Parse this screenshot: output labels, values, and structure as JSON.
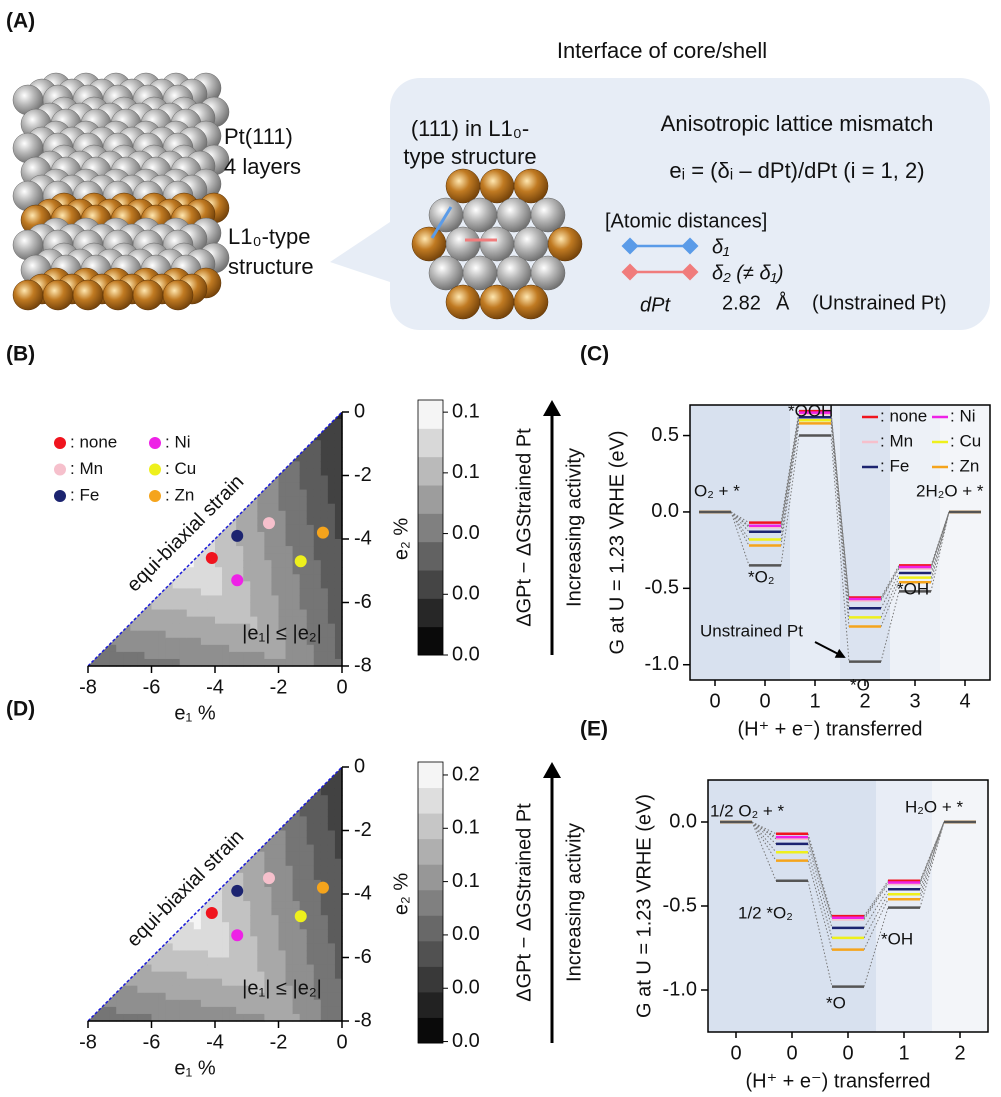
{
  "panel_a": {
    "label": "(A)",
    "title": "Interface of core/shell",
    "stack_labels": [
      "Pt(111)",
      "4 layers",
      "L1₀-type",
      "structure"
    ],
    "inset_title": [
      "(111) in L1₀-",
      "type structure"
    ],
    "mismatch_title": "Anisotropic lattice mismatch",
    "equation": "eᵢ = (δᵢ – dPt)/dPt (i = 1, 2)",
    "distances_title": "[Atomic distances]",
    "delta1": "δ₁",
    "delta2": "δ₂ (≠ δ₁)",
    "dpt_symbol": "dPt",
    "dpt_value": 2.82,
    "dpt_unit": "Å",
    "dpt_note": "(Unstrained Pt)"
  },
  "chart_data": [
    {
      "type": "scatter",
      "label": "(B)",
      "xlabel": "e₁ %",
      "ylabel": "e₂ %",
      "xlim": [
        -8,
        0
      ],
      "ylim": [
        -8,
        0
      ],
      "xticks": [
        -8,
        -6,
        -4,
        -2,
        0
      ],
      "yticks": [
        0,
        -2,
        -4,
        -6,
        -8
      ],
      "series": [
        {
          "name": ": none",
          "color": "#f0141e",
          "x": [
            -4.1
          ],
          "y": [
            -4.6
          ]
        },
        {
          "name": ": Mn",
          "color": "#f6c0cc",
          "x": [
            -2.3
          ],
          "y": [
            -3.5
          ]
        },
        {
          "name": ": Fe",
          "color": "#1c2470",
          "x": [
            -3.3
          ],
          "y": [
            -3.9
          ]
        },
        {
          "name": ": Ni",
          "color": "#ee22e6",
          "x": [
            -3.3
          ],
          "y": [
            -5.3
          ]
        },
        {
          "name": ": Cu",
          "color": "#eef01c",
          "x": [
            -1.3
          ],
          "y": [
            -4.7
          ]
        },
        {
          "name": ": Zn",
          "color": "#f5a41c",
          "x": [
            -0.6
          ],
          "y": [
            -3.8
          ]
        }
      ],
      "annotations": [
        "equi-biaxial strain",
        "|e₁| ≤ |e₂|"
      ],
      "colorbar": {
        "label": "ΔGPt − ΔGStrained Pt",
        "arrow_label": "Increasing activity",
        "lim": [
          0,
          0.084
        ],
        "ticks": [
          {
            "value": 0,
            "label": "0.0"
          },
          {
            "value": 0.02,
            "label": "0.0"
          },
          {
            "value": 0.04,
            "label": "0.0"
          },
          {
            "value": 0.06,
            "label": "0.1"
          },
          {
            "value": 0.08,
            "label": "0.1"
          }
        ]
      }
    },
    {
      "type": "energy",
      "label": "(C)",
      "xlabel": "(H⁺ + e⁻) transferred",
      "ylabel": "G at U = 1.23 VRHE (eV)",
      "categories": [
        "0",
        "0",
        "1",
        "2",
        "3",
        "4"
      ],
      "states": [
        "O₂ + *",
        "*O₂",
        "*OOH",
        "*O",
        "*OH",
        "2H₂O + *"
      ],
      "ylim": [
        -1.1,
        0.7
      ],
      "yticks": [
        {
          "value": -1,
          "label": "-1.0"
        },
        -0.5,
        {
          "value": 0,
          "label": "0.0"
        },
        0.5
      ],
      "legend": true,
      "series": [
        {
          "name": ": none",
          "color": "#f0141e",
          "values": [
            0,
            -0.07,
            0.66,
            -0.56,
            -0.35,
            0
          ]
        },
        {
          "name": ": Mn",
          "color": "#f6c0cc",
          "values": [
            0,
            -0.1,
            0.64,
            -0.58,
            -0.37,
            0
          ]
        },
        {
          "name": ": Fe",
          "color": "#1c2470",
          "values": [
            0,
            -0.13,
            0.62,
            -0.63,
            -0.4,
            0
          ]
        },
        {
          "name": ": Ni",
          "color": "#ee22e6",
          "values": [
            0,
            -0.09,
            0.65,
            -0.57,
            -0.36,
            0
          ]
        },
        {
          "name": ": Cu",
          "color": "#eef01c",
          "values": [
            0,
            -0.18,
            0.6,
            -0.69,
            -0.43,
            0
          ]
        },
        {
          "name": ": Zn",
          "color": "#f5a41c",
          "values": [
            0,
            -0.22,
            0.58,
            -0.75,
            -0.46,
            0
          ]
        }
      ],
      "reference": {
        "name": "Unstrained Pt",
        "color": "#555555",
        "values": [
          0,
          -0.35,
          0.5,
          -0.98,
          -0.52,
          0
        ]
      }
    },
    {
      "type": "scatter",
      "label": "(D)",
      "xlabel": "e₁ %",
      "ylabel": "e₂ %",
      "xlim": [
        -8,
        0
      ],
      "ylim": [
        -8,
        0
      ],
      "xticks": [
        -8,
        -6,
        -4,
        -2,
        0
      ],
      "yticks": [
        0,
        -2,
        -4,
        -6,
        -8
      ],
      "series": [
        {
          "color": "#f0141e",
          "x": [
            -4.1
          ],
          "y": [
            -4.6
          ]
        },
        {
          "color": "#f6c0cc",
          "x": [
            -2.3
          ],
          "y": [
            -3.5
          ]
        },
        {
          "color": "#1c2470",
          "x": [
            -3.3
          ],
          "y": [
            -3.9
          ]
        },
        {
          "color": "#ee22e6",
          "x": [
            -3.3
          ],
          "y": [
            -5.3
          ]
        },
        {
          "color": "#eef01c",
          "x": [
            -1.3
          ],
          "y": [
            -4.7
          ]
        },
        {
          "color": "#f5a41c",
          "x": [
            -0.6
          ],
          "y": [
            -3.8
          ]
        }
      ],
      "annotations": [
        "equi-biaxial strain",
        "|e₁| ≤ |e₂|"
      ],
      "colorbar": {
        "label": "ΔGPt − ΔGStrained Pt",
        "arrow_label": "Increasing activity",
        "lim": [
          -0.031,
          0.164
        ],
        "ticks": [
          {
            "value": -0.03,
            "label": "0.0"
          },
          {
            "value": 0.007,
            "label": "0.0"
          },
          {
            "value": 0.044,
            "label": "0.0"
          },
          {
            "value": 0.081,
            "label": "0.1"
          },
          {
            "value": 0.118,
            "label": "0.1"
          },
          {
            "value": 0.155,
            "label": "0.2"
          }
        ]
      }
    },
    {
      "type": "energy",
      "label": "(E)",
      "xlabel": "(H⁺ + e⁻) transferred",
      "ylabel": "G at U = 1.23 VRHE (eV)",
      "categories": [
        "0",
        "0",
        "0",
        "1",
        "2"
      ],
      "states": [
        "1/2 O₂ + *",
        "1/2 *O₂",
        "*O",
        "*OH",
        "H₂O + *"
      ],
      "ylim": [
        -1.25,
        0.25
      ],
      "yticks": [
        {
          "value": -1,
          "label": "-1.0"
        },
        -0.5,
        {
          "value": 0,
          "label": "0.0"
        }
      ],
      "legend": false,
      "series": [
        {
          "color": "#f0141e",
          "values": [
            0,
            -0.07,
            -0.56,
            -0.35,
            0
          ]
        },
        {
          "color": "#f6c0cc",
          "values": [
            0,
            -0.1,
            -0.58,
            -0.37,
            0
          ]
        },
        {
          "color": "#1c2470",
          "values": [
            0,
            -0.13,
            -0.63,
            -0.4,
            0
          ]
        },
        {
          "color": "#ee22e6",
          "values": [
            0,
            -0.09,
            -0.57,
            -0.36,
            0
          ]
        },
        {
          "color": "#eef01c",
          "values": [
            0,
            -0.18,
            -0.69,
            -0.43,
            0
          ]
        },
        {
          "color": "#f5a41c",
          "values": [
            0,
            -0.23,
            -0.76,
            -0.46,
            0
          ]
        }
      ],
      "reference": {
        "color": "#555555",
        "values": [
          0,
          -0.35,
          -0.98,
          -0.51,
          0
        ]
      }
    }
  ]
}
